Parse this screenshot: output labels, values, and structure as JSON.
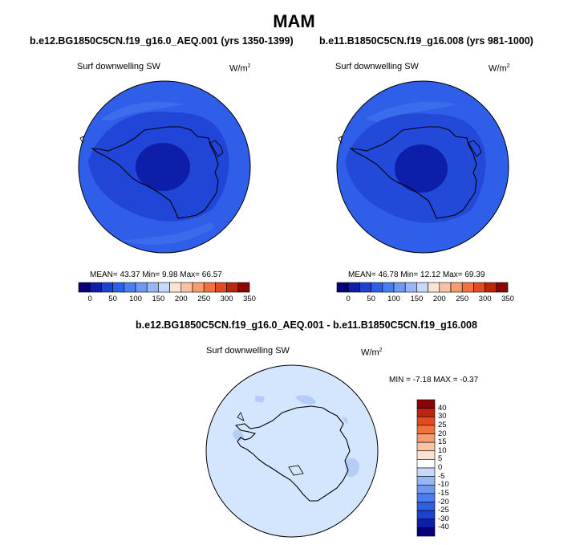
{
  "title": "MAM",
  "panels": [
    {
      "title": "b.e12.BG1850C5CN.f19_g16.0_AEQ.001 (yrs 1350-1399)",
      "variable": "Surf downwelling SW",
      "units": "W/m",
      "units_sup": "2",
      "stats": "MEAN=  43.37  Min=   9.98  Max=  66.57",
      "colorbar_ticks": [
        "0",
        "50",
        "100",
        "150",
        "200",
        "250",
        "300",
        "350"
      ]
    },
    {
      "title": "b.e11.B1850C5CN.f19_g16.008 (yrs 981-1000)",
      "variable": "Surf downwelling SW",
      "units": "W/m",
      "units_sup": "2",
      "stats": "MEAN=  46.78  Min=  12.12  Max=  69.39",
      "colorbar_ticks": [
        "0",
        "50",
        "100",
        "150",
        "200",
        "250",
        "300",
        "350"
      ]
    },
    {
      "title": "b.e12.BG1850C5CN.f19_g16.0_AEQ.001 - b.e11.B1850C5CN.f19_g16.008",
      "variable": "Surf downwelling SW",
      "units": "W/m",
      "units_sup": "2",
      "stats": "MIN =  -7.18 MAX =  -0.37",
      "colorbar_ticks": [
        "40",
        "30",
        "25",
        "20",
        "15",
        "10",
        "5",
        "0",
        "-5",
        "-10",
        "-15",
        "-20",
        "-25",
        "-30",
        "-40"
      ]
    }
  ],
  "colors": {
    "horiz_bar": [
      "#08007a",
      "#0d1fa8",
      "#1f41d2",
      "#2f5fe8",
      "#4a7ef0",
      "#6e99f3",
      "#98b6f6",
      "#c6d9fa",
      "#fbe3d2",
      "#f9c2a3",
      "#f79b70",
      "#f2723e",
      "#e14b1d",
      "#bd240c",
      "#8a0505"
    ],
    "vert_bar": [
      "#8a0505",
      "#bd240c",
      "#e14b1d",
      "#f2723e",
      "#f79b70",
      "#f9c2a3",
      "#fbe3d2",
      "#ffffff",
      "#c6d9fa",
      "#98b6f6",
      "#6e99f3",
      "#4a7ef0",
      "#2f5fe8",
      "#1f41d2",
      "#0d1fa8",
      "#08007a"
    ],
    "ocean_blue": "#2f5fe8",
    "inner_blue": "#1f41d2",
    "pole_blue": "#0d1fa8",
    "diff_fill": "#d4e6fd"
  }
}
